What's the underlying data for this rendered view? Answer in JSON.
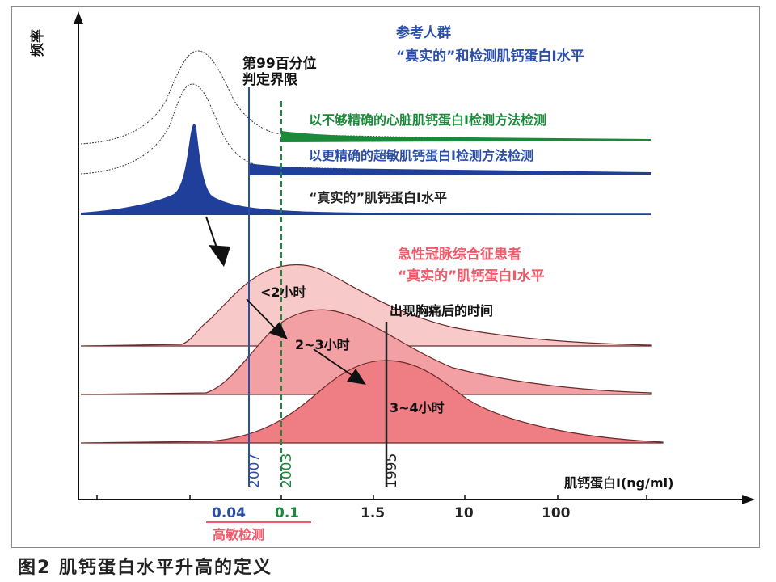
{
  "caption": "图2  肌钙蛋白水平升高的定义",
  "axes": {
    "y_label": "频率",
    "x_label": "肌钙蛋白I(ng/ml)",
    "x_ticks": [
      "0.04",
      "0.1",
      "1.5",
      "10",
      "100"
    ],
    "tick_colors": [
      "#2b4fa6",
      "#1a8a3a",
      "#222222",
      "#222222",
      "#222222"
    ],
    "hs_label": "高敏检测"
  },
  "cutoff": {
    "line1": "第99百分位",
    "line2": "判定界限"
  },
  "vertical_lines": [
    {
      "year": "2007",
      "color": "#2b4fa6"
    },
    {
      "year": "2003",
      "color": "#1a8a3a"
    },
    {
      "year": "1995",
      "color": "#222222"
    }
  ],
  "top_panel": {
    "title_line1": "参考人群",
    "title_line2": "“真实的”和检测肌钙蛋白I水平",
    "curve_labels": [
      {
        "text": "以不够精确的心脏肌钙蛋白I检测方法检测",
        "color": "#1a8a3a"
      },
      {
        "text": "以更精确的超敏肌钙蛋白I检测方法检测",
        "color": "#2b4fa6"
      },
      {
        "text": "“真实的”肌钙蛋白I水平",
        "color": "#222222"
      }
    ]
  },
  "bottom_panel": {
    "title_line1": "急性冠脉综合征患者",
    "title_line2": "“真实的”肌钙蛋白I水平",
    "time_title": "出现胸痛后的时间",
    "time_labels": [
      "<2小时",
      "2~3小时",
      "3~4小时"
    ]
  },
  "colors": {
    "blue": "#2b4fa6",
    "green": "#1a8a3a",
    "pink_title": "#f05a6a",
    "fill_light": "#f7c9c9",
    "fill_mid": "#f2a0a4",
    "fill_dark": "#ee7d84",
    "dark_blue_fill": "#1f3f9a"
  }
}
